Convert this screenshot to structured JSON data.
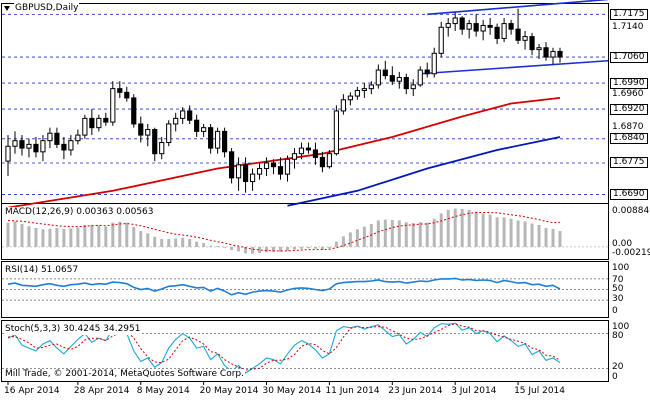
{
  "chart_title": "GBPUSD,Daily",
  "copyright": "Mill Trade, © 2001-2014, MetaQuotes Software Corp.",
  "price_panel": {
    "ylim": [
      1.667,
      1.72
    ],
    "levels": [
      {
        "value": 1.7175,
        "label": "1.7175",
        "boxed": true
      },
      {
        "value": 1.706,
        "label": "1.7060",
        "boxed": true
      },
      {
        "value": 1.699,
        "label": "1.6990",
        "boxed": true
      },
      {
        "value": 1.692,
        "label": "1.6920",
        "boxed": true
      },
      {
        "value": 1.684,
        "label": "1.6840",
        "boxed": true
      },
      {
        "value": 1.6775,
        "label": "1.6775",
        "boxed": true
      },
      {
        "value": 1.669,
        "label": "1.6690",
        "boxed": true
      }
    ],
    "axis_labels": [
      {
        "value": 1.714,
        "label": "1.7140"
      },
      {
        "value": 1.696,
        "label": "1.6960"
      },
      {
        "value": 1.687,
        "label": "1.6870"
      }
    ]
  },
  "x_axis": {
    "labels": [
      "16 Apr 2014",
      "28 Apr 2014",
      "8 May 2014",
      "20 May 2014",
      "30 May 2014",
      "11 Jun 2014",
      "23 Jun 2014",
      "3 Jul 2014",
      "15 Jul 2014"
    ],
    "label_bar_index": [
      0,
      10,
      19,
      28,
      37,
      46,
      55,
      64,
      73
    ]
  },
  "macd": {
    "header": "MACD(12,26,9) 0.00363 0.00563",
    "ylabels": [
      "0.00884",
      "0.00",
      "-0.00219"
    ],
    "ylim": [
      -0.0025,
      0.0095
    ]
  },
  "rsi": {
    "header": "RSI(14) 51.0657",
    "ylabels": [
      "100",
      "70",
      "50",
      "30",
      "0"
    ],
    "ylim": [
      0,
      100
    ]
  },
  "stoch": {
    "header": "Stoch(5,3,3) 30.4245 34.2951",
    "ylabels": [
      "100",
      "80",
      "20",
      "0"
    ],
    "ylim": [
      0,
      100
    ]
  },
  "colors": {
    "bull_body": "#ffffff",
    "bear_body": "#000000",
    "ma_red": "#d40000",
    "ma_blue": "#0018b8",
    "channel": "#1a2fd1",
    "macd_hist": "#b7b7b7",
    "macd_signal": "#d40000",
    "rsi_line": "#1e7fd6",
    "stoch_main": "#1aa8d8",
    "stoch_signal": "#d40000"
  },
  "chart_data": {
    "type": "candlestick",
    "symbol": "GBPUSD",
    "timeframe": "Daily",
    "candles": [
      [
        1.678,
        1.685,
        1.674,
        1.682
      ],
      [
        1.682,
        1.686,
        1.68,
        1.6835
      ],
      [
        1.6835,
        1.685,
        1.6795,
        1.6815
      ],
      [
        1.6815,
        1.684,
        1.679,
        1.6825
      ],
      [
        1.6825,
        1.6845,
        1.679,
        1.6805
      ],
      [
        1.6805,
        1.685,
        1.678,
        1.6835
      ],
      [
        1.6835,
        1.687,
        1.6815,
        1.6855
      ],
      [
        1.6855,
        1.687,
        1.6815,
        1.6825
      ],
      [
        1.6825,
        1.6845,
        1.6785,
        1.681
      ],
      [
        1.681,
        1.685,
        1.6795,
        1.6835
      ],
      [
        1.6835,
        1.6865,
        1.6825,
        1.685
      ],
      [
        1.685,
        1.6905,
        1.684,
        1.6895
      ],
      [
        1.6895,
        1.692,
        1.685,
        1.687
      ],
      [
        1.687,
        1.6905,
        1.686,
        1.6895
      ],
      [
        1.6895,
        1.691,
        1.6875,
        1.6885
      ],
      [
        1.6885,
        1.6995,
        1.6875,
        1.6975
      ],
      [
        1.6975,
        1.6995,
        1.695,
        1.6965
      ],
      [
        1.6965,
        1.698,
        1.694,
        1.695
      ],
      [
        1.695,
        1.696,
        1.687,
        1.688
      ],
      [
        1.688,
        1.69,
        1.683,
        1.685
      ],
      [
        1.685,
        1.688,
        1.682,
        1.6865
      ],
      [
        1.6865,
        1.687,
        1.678,
        1.68
      ],
      [
        1.68,
        1.6845,
        1.6785,
        1.683
      ],
      [
        1.683,
        1.689,
        1.682,
        1.688
      ],
      [
        1.688,
        1.691,
        1.686,
        1.6895
      ],
      [
        1.6895,
        1.6925,
        1.688,
        1.6915
      ],
      [
        1.6915,
        1.693,
        1.688,
        1.689
      ],
      [
        1.689,
        1.6905,
        1.6845,
        1.686
      ],
      [
        1.686,
        1.688,
        1.6845,
        1.687
      ],
      [
        1.687,
        1.688,
        1.68,
        1.6815
      ],
      [
        1.6815,
        1.687,
        1.68,
        1.686
      ],
      [
        1.686,
        1.687,
        1.679,
        1.6805
      ],
      [
        1.6805,
        1.6815,
        1.672,
        1.6735
      ],
      [
        1.6735,
        1.679,
        1.67,
        1.677
      ],
      [
        1.677,
        1.679,
        1.6695,
        1.6725
      ],
      [
        1.6725,
        1.676,
        1.67,
        1.6745
      ],
      [
        1.6745,
        1.6775,
        1.673,
        1.676
      ],
      [
        1.676,
        1.679,
        1.674,
        1.6775
      ],
      [
        1.6775,
        1.6785,
        1.6745,
        1.6765
      ],
      [
        1.6765,
        1.679,
        1.673,
        1.6745
      ],
      [
        1.6745,
        1.6795,
        1.6725,
        1.6785
      ],
      [
        1.6785,
        1.6815,
        1.676,
        1.68
      ],
      [
        1.68,
        1.683,
        1.6785,
        1.6815
      ],
      [
        1.6815,
        1.683,
        1.68,
        1.681
      ],
      [
        1.681,
        1.683,
        1.677,
        1.679
      ],
      [
        1.679,
        1.6805,
        1.675,
        1.6765
      ],
      [
        1.6765,
        1.681,
        1.676,
        1.68
      ],
      [
        1.68,
        1.693,
        1.6795,
        1.6915
      ],
      [
        1.6915,
        1.696,
        1.6905,
        1.6945
      ],
      [
        1.6945,
        1.6965,
        1.693,
        1.6955
      ],
      [
        1.6955,
        1.698,
        1.6945,
        1.697
      ],
      [
        1.697,
        1.699,
        1.695,
        1.6975
      ],
      [
        1.6975,
        1.6995,
        1.696,
        1.6985
      ],
      [
        1.6985,
        1.704,
        1.6975,
        1.7025
      ],
      [
        1.7025,
        1.705,
        1.7,
        1.701
      ],
      [
        1.701,
        1.7035,
        1.6985,
        1.6995
      ],
      [
        1.6995,
        1.702,
        1.6975,
        1.7005
      ],
      [
        1.7005,
        1.7015,
        1.696,
        1.6975
      ],
      [
        1.6975,
        1.7,
        1.6955,
        1.6985
      ],
      [
        1.6985,
        1.7035,
        1.698,
        1.7025
      ],
      [
        1.7025,
        1.7045,
        1.7005,
        1.7015
      ],
      [
        1.7015,
        1.7085,
        1.7005,
        1.707
      ],
      [
        1.707,
        1.7155,
        1.706,
        1.714
      ],
      [
        1.714,
        1.7165,
        1.7115,
        1.715
      ],
      [
        1.715,
        1.718,
        1.713,
        1.7165
      ],
      [
        1.7165,
        1.717,
        1.712,
        1.7135
      ],
      [
        1.7135,
        1.716,
        1.711,
        1.715
      ],
      [
        1.715,
        1.7175,
        1.7115,
        1.713
      ],
      [
        1.713,
        1.716,
        1.7105,
        1.7145
      ],
      [
        1.7145,
        1.7165,
        1.712,
        1.714
      ],
      [
        1.714,
        1.715,
        1.7095,
        1.711
      ],
      [
        1.711,
        1.7165,
        1.71,
        1.715
      ],
      [
        1.715,
        1.716,
        1.712,
        1.7135
      ],
      [
        1.7135,
        1.719,
        1.7095,
        1.7105
      ],
      [
        1.7105,
        1.713,
        1.708,
        1.7115
      ],
      [
        1.7115,
        1.7125,
        1.7065,
        1.708
      ],
      [
        1.708,
        1.7095,
        1.7055,
        1.7085
      ],
      [
        1.7085,
        1.71,
        1.705,
        1.706
      ],
      [
        1.706,
        1.7085,
        1.704,
        1.7075
      ],
      [
        1.7075,
        1.7085,
        1.7045,
        1.706
      ]
    ],
    "ma_red": [
      [
        0,
        1.6655
      ],
      [
        15,
        1.67
      ],
      [
        30,
        1.676
      ],
      [
        45,
        1.68
      ],
      [
        55,
        1.6845
      ],
      [
        65,
        1.69
      ],
      [
        72,
        1.6935
      ],
      [
        79,
        1.695
      ]
    ],
    "ma_blue": [
      [
        40,
        1.666
      ],
      [
        50,
        1.67
      ],
      [
        60,
        1.676
      ],
      [
        70,
        1.681
      ],
      [
        79,
        1.6845
      ]
    ],
    "channel_upper": [
      [
        60,
        1.7175
      ],
      [
        79,
        1.7215
      ]
    ],
    "channel_lower": [
      [
        59,
        1.7015
      ],
      [
        79,
        1.705
      ]
    ],
    "macd_hist": [
      0.0055,
      0.0058,
      0.0052,
      0.0047,
      0.0043,
      0.004,
      0.0041,
      0.0043,
      0.0041,
      0.0042,
      0.0044,
      0.005,
      0.005,
      0.0049,
      0.0046,
      0.0055,
      0.0057,
      0.0055,
      0.0045,
      0.0036,
      0.0031,
      0.0023,
      0.0018,
      0.0018,
      0.0019,
      0.0021,
      0.0018,
      0.0012,
      0.0009,
      0.0003,
      0.0002,
      -0.0002,
      -0.0007,
      -0.001,
      -0.0015,
      -0.0015,
      -0.0014,
      -0.0012,
      -0.0011,
      -0.0011,
      -0.0009,
      -0.0006,
      -0.0004,
      -0.0003,
      -0.0004,
      -0.0006,
      -0.0003,
      0.0012,
      0.0024,
      0.0033,
      0.004,
      0.0046,
      0.0052,
      0.006,
      0.0062,
      0.0061,
      0.006,
      0.0056,
      0.0054,
      0.0056,
      0.0055,
      0.0064,
      0.0076,
      0.0084,
      0.0087,
      0.0086,
      0.0084,
      0.008,
      0.0076,
      0.0073,
      0.0067,
      0.0067,
      0.0064,
      0.006,
      0.0058,
      0.0053,
      0.005,
      0.0043,
      0.0041,
      0.0036
    ],
    "macd_signal": [
      0.006,
      0.0059,
      0.0058,
      0.0056,
      0.0054,
      0.0052,
      0.005,
      0.0048,
      0.0047,
      0.0046,
      0.0046,
      0.0047,
      0.0048,
      0.0049,
      0.0048,
      0.005,
      0.0052,
      0.0053,
      0.0051,
      0.0048,
      0.0044,
      0.004,
      0.0036,
      0.0032,
      0.0029,
      0.0027,
      0.0025,
      0.0022,
      0.0019,
      0.0015,
      0.0012,
      0.0009,
      0.0005,
      0.0002,
      -0.0002,
      -0.0005,
      -0.0007,
      -0.0008,
      -0.0009,
      -0.0009,
      -0.0009,
      -0.0008,
      -0.0007,
      -0.0006,
      -0.0006,
      -0.0006,
      -0.0005,
      -0.0002,
      0.0003,
      0.0009,
      0.0015,
      0.0021,
      0.0027,
      0.0034,
      0.0039,
      0.0044,
      0.0047,
      0.0049,
      0.005,
      0.0052,
      0.0052,
      0.0055,
      0.0059,
      0.0064,
      0.0069,
      0.0073,
      0.0076,
      0.0078,
      0.0078,
      0.0078,
      0.0077,
      0.0075,
      0.0073,
      0.0071,
      0.0068,
      0.0065,
      0.0062,
      0.0058,
      0.0055,
      0.0056
    ],
    "rsi": [
      60,
      62,
      58,
      57,
      56,
      59,
      61,
      58,
      56,
      59,
      60,
      62,
      59,
      61,
      60,
      64,
      63,
      61,
      54,
      50,
      52,
      47,
      51,
      56,
      57,
      59,
      56,
      53,
      54,
      47,
      52,
      47,
      40,
      44,
      41,
      45,
      47,
      48,
      47,
      45,
      49,
      52,
      53,
      52,
      50,
      48,
      51,
      61,
      63,
      64,
      65,
      65,
      66,
      68,
      65,
      64,
      65,
      62,
      64,
      66,
      65,
      68,
      70,
      70,
      71,
      68,
      69,
      67,
      68,
      67,
      63,
      67,
      65,
      62,
      63,
      59,
      60,
      56,
      58,
      51
    ],
    "stoch_main": [
      72,
      78,
      60,
      55,
      50,
      62,
      68,
      55,
      45,
      58,
      70,
      80,
      65,
      72,
      68,
      88,
      86,
      80,
      50,
      32,
      38,
      22,
      30,
      55,
      70,
      80,
      72,
      55,
      58,
      35,
      45,
      25,
      15,
      25,
      12,
      20,
      28,
      38,
      35,
      28,
      45,
      60,
      68,
      62,
      52,
      38,
      45,
      85,
      92,
      90,
      93,
      88,
      92,
      95,
      85,
      75,
      78,
      62,
      70,
      82,
      75,
      90,
      97,
      96,
      98,
      86,
      90,
      80,
      85,
      80,
      66,
      76,
      68,
      58,
      62,
      44,
      50,
      34,
      38,
      30
    ],
    "stoch_signal": [
      74,
      75,
      70,
      64,
      55,
      56,
      60,
      62,
      56,
      53,
      58,
      69,
      72,
      72,
      68,
      76,
      81,
      85,
      72,
      54,
      40,
      31,
      30,
      36,
      52,
      68,
      74,
      69,
      62,
      49,
      46,
      35,
      28,
      22,
      17,
      19,
      20,
      29,
      34,
      34,
      36,
      44,
      58,
      63,
      61,
      51,
      45,
      56,
      74,
      89,
      92,
      90,
      91,
      92,
      91,
      85,
      79,
      72,
      70,
      71,
      76,
      82,
      87,
      94,
      97,
      93,
      91,
      85,
      85,
      82,
      77,
      74,
      70,
      67,
      63,
      55,
      52,
      43,
      41,
      34
    ],
    "macd_ylim": [
      -0.0025,
      0.0095
    ],
    "rsi_levels": [
      70,
      50,
      30
    ],
    "stoch_levels": [
      80,
      20
    ],
    "x_labels": [
      "16 Apr 2014",
      "28 Apr 2014",
      "8 May 2014",
      "20 May 2014",
      "30 May 2014",
      "11 Jun 2014",
      "23 Jun 2014",
      "3 Jul 2014",
      "15 Jul 2014"
    ]
  }
}
